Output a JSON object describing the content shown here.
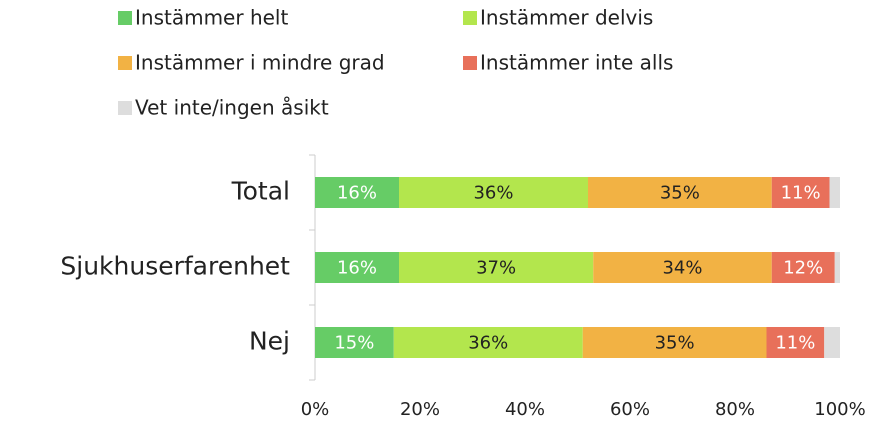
{
  "chart_data": {
    "type": "stacked_barh",
    "categories": [
      "Total",
      "Sjukhuserfarenhet",
      "Nej"
    ],
    "series": [
      {
        "name": "Instämmer helt",
        "color": "#66cc66",
        "label_color": "#ffffff",
        "values": [
          16,
          16,
          15
        ],
        "value_labels": [
          "16%",
          "16%",
          "15%"
        ]
      },
      {
        "name": "Instämmer delvis",
        "color": "#b3e64d",
        "label_color": "#222222",
        "values": [
          36,
          37,
          36
        ],
        "value_labels": [
          "36%",
          "37%",
          "36%"
        ]
      },
      {
        "name": "Instämmer i mindre grad",
        "color": "#f2b244",
        "label_color": "#222222",
        "values": [
          35,
          34,
          35
        ],
        "value_labels": [
          "35%",
          "34%",
          "35%"
        ]
      },
      {
        "name": "Instämmer inte alls",
        "color": "#e8705a",
        "label_color": "#ffffff",
        "values": [
          11,
          12,
          11
        ],
        "value_labels": [
          "11%",
          "12%",
          "11%"
        ]
      },
      {
        "name": "Vet inte/ingen åsikt",
        "color": "#dddddd",
        "values": [
          2,
          1,
          3
        ]
      }
    ],
    "xlim": [
      0,
      100
    ],
    "xticks": [
      {
        "value": 0,
        "label": "0%"
      },
      {
        "value": 20,
        "label": "20%"
      },
      {
        "value": 40,
        "label": "40%"
      },
      {
        "value": 60,
        "label": "60%"
      },
      {
        "value": 80,
        "label": "80%"
      },
      {
        "value": 100,
        "label": "100%"
      }
    ],
    "legend": "top"
  }
}
